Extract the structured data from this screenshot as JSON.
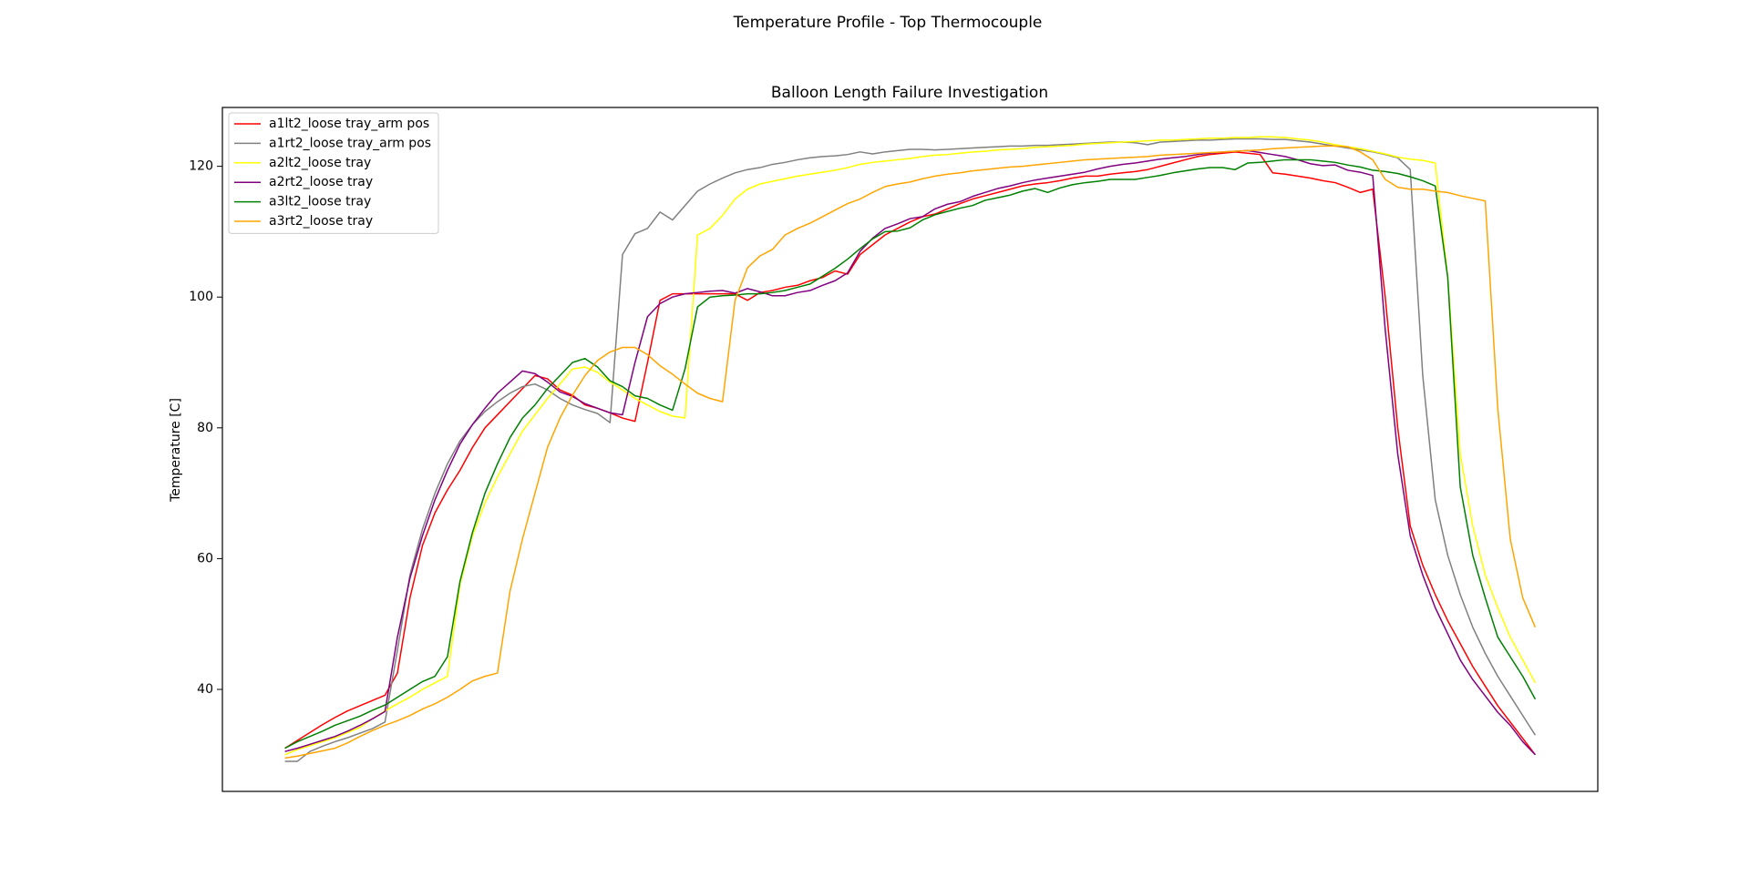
{
  "chart_data": {
    "type": "line",
    "title": "Temperature Profile - Top Thermocouple",
    "subtitle": "Balloon Length Failure Investigation",
    "y_label": "Temperature [C]",
    "ylim": [
      24.4,
      129.0
    ],
    "yticks": [
      40,
      60,
      80,
      100,
      120
    ],
    "grid": false,
    "legend": "upper left",
    "series": [
      {
        "name": "a1lt2_loose tray_arm pos",
        "color": "red",
        "values": [
          31,
          32.2,
          33.4,
          34.6,
          35.7,
          36.7,
          37.5,
          38.3,
          39.1,
          42.5,
          54,
          62,
          67,
          70.5,
          73.5,
          77,
          80,
          82,
          84,
          86,
          88,
          87.5,
          85.8,
          85,
          83.5,
          83,
          82.3,
          81.5,
          81,
          90,
          99.5,
          100.5,
          100.5,
          100.5,
          100.5,
          100.5,
          100.5,
          99.5,
          100.7,
          101,
          101.5,
          101.8,
          102.5,
          103,
          104,
          103.5,
          106.5,
          108,
          109.5,
          110.5,
          111.5,
          112.3,
          112.7,
          113.5,
          114.3,
          115,
          115.5,
          116,
          116.5,
          117,
          117.3,
          117.5,
          117.8,
          118.2,
          118.5,
          118.5,
          118.8,
          119,
          119.2,
          119.5,
          120,
          120.5,
          121,
          121.5,
          121.8,
          122,
          122.2,
          122,
          121.8,
          119,
          118.8,
          118.5,
          118.2,
          117.8,
          117.5,
          116.8,
          116,
          116.5,
          100,
          80,
          65,
          59,
          54.5,
          50.5,
          47,
          43.5,
          40.5,
          37.5,
          35,
          32.5,
          30
        ]
      },
      {
        "name": "a1rt2_loose tray_arm pos",
        "color": "gray",
        "values": [
          29,
          29,
          30.5,
          31.3,
          32,
          32.6,
          33.3,
          34,
          35,
          46,
          57.5,
          64.5,
          70,
          74.5,
          78,
          80.5,
          82.5,
          84,
          85.3,
          86.3,
          86.7,
          85.8,
          84.5,
          83.5,
          82.8,
          82.2,
          80.8,
          106.5,
          109.7,
          110.5,
          113,
          111.8,
          114,
          116.2,
          117.3,
          118.2,
          119,
          119.5,
          119.8,
          120.3,
          120.6,
          121,
          121.3,
          121.5,
          121.6,
          121.8,
          122.2,
          121.9,
          122.2,
          122.4,
          122.6,
          122.6,
          122.5,
          122.6,
          122.7,
          122.8,
          122.9,
          123,
          123.1,
          123.1,
          123.2,
          123.2,
          123.3,
          123.4,
          123.5,
          123.6,
          123.7,
          123.7,
          123.6,
          123.3,
          123.7,
          123.8,
          123.9,
          124,
          124,
          124.1,
          124.2,
          124.2,
          124.2,
          124.1,
          124.1,
          123.9,
          123.7,
          123.4,
          123.1,
          122.8,
          122.5,
          122.2,
          121.8,
          121.3,
          119.5,
          88,
          69,
          60.5,
          54.5,
          49.5,
          45.5,
          42,
          39,
          36,
          33
        ]
      },
      {
        "name": "a2lt2_loose tray",
        "color": "yellow",
        "values": [
          30,
          30.8,
          31.4,
          32,
          32.6,
          33.4,
          34.2,
          35.5,
          36.7,
          37.8,
          38.8,
          40,
          41,
          42,
          56,
          63.5,
          68.5,
          72.5,
          76,
          79.5,
          82,
          84.5,
          86.7,
          89,
          89.3,
          88.5,
          87,
          85.8,
          84.5,
          83.5,
          82.5,
          81.8,
          81.5,
          109.5,
          110.5,
          112.5,
          115,
          116.5,
          117.3,
          117.7,
          118.1,
          118.5,
          118.8,
          119.1,
          119.4,
          119.8,
          120.3,
          120.6,
          120.8,
          121,
          121.2,
          121.5,
          121.7,
          121.8,
          122,
          122.2,
          122.3,
          122.5,
          122.6,
          122.7,
          122.9,
          123,
          123.1,
          123.2,
          123.4,
          123.5,
          123.6,
          123.7,
          123.8,
          123.9,
          124,
          124,
          124.1,
          124.2,
          124.3,
          124.3,
          124.4,
          124.4,
          124.5,
          124.5,
          124.4,
          124.2,
          124,
          123.7,
          123.3,
          123,
          122.7,
          122.3,
          121.9,
          121.4,
          121.1,
          120.9,
          120.5,
          103,
          76,
          65,
          57.5,
          52.5,
          48,
          44.5,
          41
        ]
      },
      {
        "name": "a2rt2_loose tray",
        "color": "purple",
        "values": [
          30.5,
          31,
          31.6,
          32.2,
          32.8,
          33.6,
          34.5,
          35.5,
          36.6,
          48,
          57,
          63.5,
          69,
          73.5,
          77.5,
          80.5,
          83,
          85.3,
          87,
          88.7,
          88.3,
          87,
          85.5,
          84.8,
          83.7,
          83,
          82.3,
          82,
          90,
          97,
          99,
          100,
          100.5,
          100.7,
          100.9,
          101,
          100.6,
          101.3,
          100.8,
          100.2,
          100.2,
          100.7,
          101,
          101.8,
          102.5,
          103.7,
          107,
          109,
          110.5,
          111.2,
          112,
          112.3,
          113.5,
          114.2,
          114.6,
          115.4,
          116,
          116.6,
          117,
          117.5,
          117.9,
          118.2,
          118.5,
          118.8,
          119.1,
          119.6,
          120,
          120.3,
          120.5,
          120.8,
          121.1,
          121.3,
          121.5,
          121.8,
          122,
          122.2,
          122.3,
          122.4,
          122.1,
          121.8,
          121.5,
          121,
          120.4,
          120.1,
          120.2,
          119.4,
          119.1,
          118.6,
          95,
          76,
          63.5,
          57.5,
          52.5,
          48.5,
          44.5,
          41.5,
          39,
          36.5,
          34.5,
          32,
          30
        ]
      },
      {
        "name": "a3lt2_loose tray",
        "color": "green",
        "values": [
          31,
          32,
          32.8,
          33.6,
          34.5,
          35.2,
          35.9,
          36.8,
          37.6,
          38.8,
          40,
          41.2,
          42,
          45,
          56.5,
          64,
          70,
          74.5,
          78.5,
          81.5,
          83.5,
          86,
          88,
          90,
          90.6,
          89.3,
          87.2,
          86.3,
          84.9,
          84.5,
          83.5,
          82.7,
          89,
          98.5,
          100,
          100.2,
          100.3,
          100.5,
          100.5,
          100.7,
          101,
          101.5,
          102,
          103.2,
          104.4,
          105.8,
          107.4,
          108.9,
          110,
          110.1,
          110.6,
          111.8,
          112.6,
          113.1,
          113.6,
          114,
          114.8,
          115.2,
          115.6,
          116.2,
          116.6,
          116,
          116.7,
          117.2,
          117.5,
          117.7,
          118,
          118,
          118,
          118.3,
          118.6,
          119,
          119.3,
          119.6,
          119.8,
          119.8,
          119.5,
          120.5,
          120.6,
          120.8,
          121,
          121,
          121,
          120.8,
          120.6,
          120.2,
          119.9,
          119.4,
          119.2,
          118.9,
          118.4,
          117.8,
          117,
          103,
          71,
          60.5,
          54,
          48,
          45,
          42,
          38.5
        ]
      },
      {
        "name": "a3rt2_loose tray",
        "color": "orange",
        "values": [
          29.5,
          29.8,
          30.2,
          30.6,
          31,
          31.8,
          32.8,
          33.7,
          34.5,
          35.2,
          36,
          37,
          37.8,
          38.8,
          40,
          41.3,
          42,
          42.5,
          55,
          63,
          70,
          77,
          81.5,
          85,
          88,
          90.3,
          91.6,
          92.3,
          92.3,
          91.2,
          89.5,
          88.2,
          86.7,
          85.3,
          84.5,
          84,
          99.5,
          104.5,
          106.3,
          107.3,
          109.5,
          110.5,
          111.3,
          112.3,
          113.3,
          114.3,
          115,
          116,
          116.9,
          117.3,
          117.6,
          118.1,
          118.5,
          118.8,
          119,
          119.3,
          119.5,
          119.7,
          119.9,
          120,
          120.2,
          120.4,
          120.6,
          120.8,
          121,
          121.1,
          121.2,
          121.3,
          121.4,
          121.5,
          121.7,
          121.8,
          121.9,
          122,
          122.1,
          122.2,
          122.3,
          122.4,
          122.5,
          122.7,
          122.8,
          122.9,
          123,
          123.1,
          123.1,
          123,
          122.2,
          121,
          118,
          116.8,
          116.5,
          116.5,
          116.2,
          116,
          115.5,
          115.1,
          114.7,
          83,
          63,
          54,
          49.5
        ]
      }
    ]
  }
}
